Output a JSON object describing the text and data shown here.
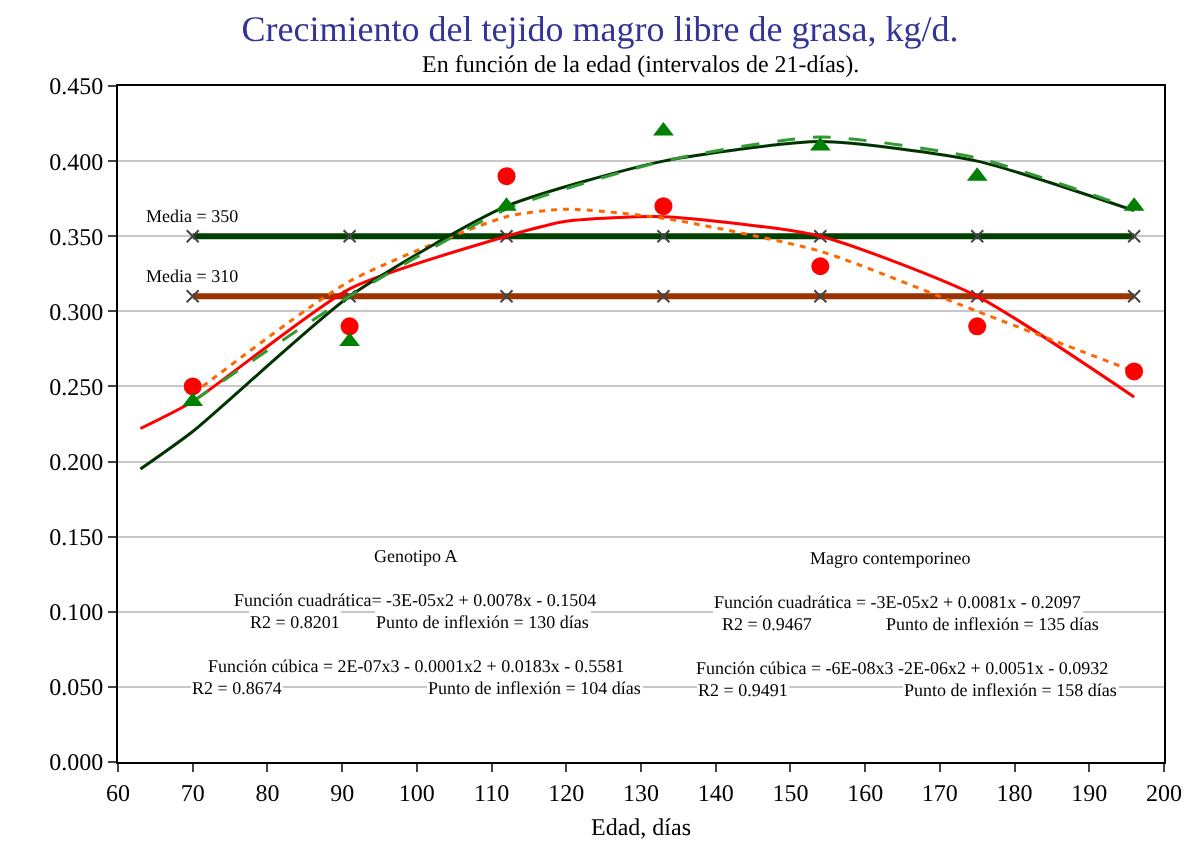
{
  "chart_data": {
    "type": "scatter",
    "title": "Crecimiento del tejido magro libre de grasa, kg/d.",
    "subtitle": "En función de la edad (intervalos de 21-días).",
    "xlabel": "Edad, días",
    "xlim": [
      60,
      200
    ],
    "xticks": [
      60,
      70,
      80,
      90,
      100,
      110,
      120,
      130,
      140,
      150,
      160,
      170,
      180,
      190,
      200
    ],
    "ylim": [
      0,
      0.45
    ],
    "yticks": [
      {
        "value": 0,
        "label": "0.000"
      },
      {
        "value": 0.05,
        "label": "0.050"
      },
      {
        "value": 0.1,
        "label": "0.100"
      },
      {
        "value": 0.15,
        "label": "0.150"
      },
      {
        "value": 0.2,
        "label": "0.200"
      },
      {
        "value": 0.25,
        "label": "0.250"
      },
      {
        "value": 0.3,
        "label": "0.300"
      },
      {
        "value": 0.35,
        "label": "0.350"
      },
      {
        "value": 0.4,
        "label": "0.400"
      },
      {
        "value": 0.45,
        "label": "0.450"
      }
    ],
    "grid": "y",
    "series": [
      {
        "type": "line",
        "color": "#004000",
        "marker": "cross",
        "x": [
          70,
          91,
          112,
          133,
          154,
          175,
          196
        ],
        "values": [
          0.35,
          0.35,
          0.35,
          0.35,
          0.35,
          0.35,
          0.35
        ]
      },
      {
        "type": "line",
        "color": "#993300",
        "marker": "cross",
        "x": [
          70,
          91,
          112,
          133,
          154,
          175,
          196
        ],
        "values": [
          0.31,
          0.31,
          0.31,
          0.31,
          0.31,
          0.31,
          0.31
        ]
      },
      {
        "type": "line",
        "color": "#ff0000",
        "marker": "none",
        "line_style": "solid",
        "x": [
          63,
          70,
          91,
          112,
          120,
          133,
          154,
          175,
          196
        ],
        "values": [
          0.222,
          0.24,
          0.315,
          0.35,
          0.36,
          0.363,
          0.35,
          0.31,
          0.243
        ]
      },
      {
        "type": "line",
        "color": "#ff6600",
        "marker": "none",
        "line_style": "dotted",
        "x": [
          70,
          91,
          112,
          120,
          133,
          154,
          175,
          196
        ],
        "values": [
          0.245,
          0.32,
          0.363,
          0.368,
          0.362,
          0.34,
          0.3,
          0.26
        ]
      },
      {
        "type": "line",
        "color": "#003300",
        "marker": "none",
        "line_style": "solid",
        "x": [
          63,
          70,
          91,
          112,
          133,
          154,
          175,
          196
        ],
        "values": [
          0.195,
          0.22,
          0.31,
          0.37,
          0.4,
          0.413,
          0.4,
          0.367
        ]
      },
      {
        "type": "line",
        "color": "#339933",
        "marker": "none",
        "line_style": "dashed",
        "x": [
          70,
          91,
          112,
          133,
          154,
          175,
          196
        ],
        "values": [
          0.24,
          0.31,
          0.368,
          0.4,
          0.416,
          0.402,
          0.368
        ]
      },
      {
        "color": "#ff0000",
        "marker": "circle",
        "x": [
          70,
          91,
          112,
          133,
          154,
          175,
          196
        ],
        "values": [
          0.25,
          0.29,
          0.39,
          0.37,
          0.33,
          0.29,
          0.26
        ]
      },
      {
        "color": "#008000",
        "marker": "triangle",
        "x": [
          70,
          91,
          112,
          133,
          154,
          175,
          196
        ],
        "values": [
          0.24,
          0.28,
          0.37,
          0.42,
          0.41,
          0.39,
          0.37
        ]
      }
    ],
    "annotations": [
      {
        "text": "Media = 350",
        "x": 70,
        "y": 0.35
      },
      {
        "text": "Media = 310",
        "x": 70,
        "y": 0.31
      },
      "Genotipo A",
      "Función cuadrática= -3E-05x2 + 0.0078x - 0.1504",
      "R2 = 0.8201",
      "Punto de inflexión = 130 días",
      "Función cúbica = 2E-07x3 - 0.0001x2 + 0.0183x - 0.5581",
      "R2 = 0.8674",
      "Punto de inflexión = 104 días",
      "Magro contemporineo",
      "Función cuadrática = -3E-05x2 + 0.0081x - 0.2097",
      "R2 = 0.9467",
      "Punto de inflexión = 135 días",
      "Función cúbica = -6E-08x3 -2E-06x2 + 0.0051x - 0.0932",
      "R2 = 0.9491",
      "Punto de inflexión = 158 días"
    ]
  }
}
